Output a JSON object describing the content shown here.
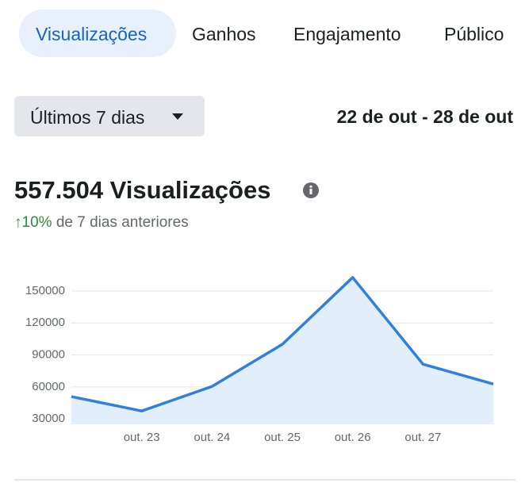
{
  "tabs": [
    "Visualizações",
    "Ganhos",
    "Engajamento",
    "Público"
  ],
  "range_selector": "Últimos 7 dias",
  "date_range": "22 de out - 28 de out",
  "summary": {
    "headline": "557.504 Visualizações",
    "change": "↑10%",
    "comparison": "de 7 dias anteriores"
  },
  "chart_data": {
    "type": "line",
    "area": true,
    "color": "#2f80e0",
    "fill": "#e3eefb",
    "x": [
      22,
      23,
      24,
      25,
      26,
      27,
      28
    ],
    "values": [
      51000,
      37500,
      60500,
      100000,
      162700,
      81400,
      62800
    ],
    "xlim": [
      22,
      28
    ],
    "xticks": [
      {
        "value": 23,
        "label": "out. 23"
      },
      {
        "value": 24,
        "label": "out. 24"
      },
      {
        "value": 25,
        "label": "out. 25"
      },
      {
        "value": 26,
        "label": "out. 26"
      },
      {
        "value": 27,
        "label": "out. 27"
      }
    ],
    "ylim": [
      25000,
      170000
    ],
    "yticks": [
      30000,
      60000,
      90000,
      120000,
      150000
    ],
    "grid": true
  }
}
